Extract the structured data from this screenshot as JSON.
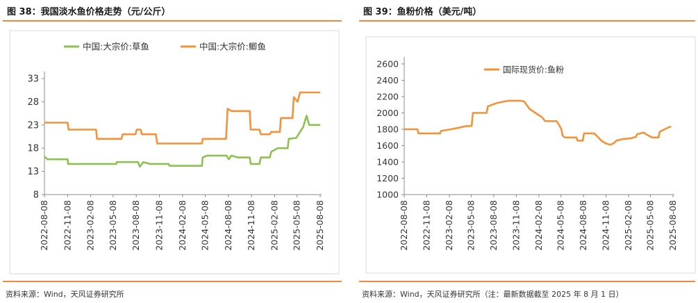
{
  "left": {
    "title": "图 38：我国淡水鱼价格走势（元/公斤）",
    "source": "资料来源：Wind，天风证券研究所"
  },
  "right": {
    "title": "图 39：鱼粉价格（美元/吨）",
    "source": "资料来源：Wind，天风证券研究所（注：最新数据截至 2025 年 8 月 1 日）"
  },
  "colors": {
    "green": "#8cc152",
    "orange": "#f4923a",
    "accent": "#ef8a3c"
  },
  "chart_data": [
    {
      "type": "line",
      "title": "",
      "ylim": [
        8,
        33
      ],
      "yticks": [
        8,
        13,
        18,
        23,
        28,
        33
      ],
      "xticks": [
        "2022-08-08",
        "2022-11-08",
        "2023-02-08",
        "2023-05-08",
        "2023-08-08",
        "2023-11-08",
        "2024-02-08",
        "2024-05-08",
        "2024-08-08",
        "2024-11-08",
        "2025-02-08",
        "2025-05-08",
        "2025-08-08"
      ],
      "legend_position": "top",
      "series": [
        {
          "name": "中国:大宗价:草鱼",
          "color": "#8cc152",
          "points": [
            [
              "2022-08-08",
              16.2
            ],
            [
              "2022-08-20",
              15.6
            ],
            [
              "2022-11-08",
              15.6
            ],
            [
              "2022-11-10",
              14.6
            ],
            [
              "2023-05-20",
              14.6
            ],
            [
              "2023-05-22",
              15.0
            ],
            [
              "2023-08-15",
              15.0
            ],
            [
              "2023-08-22",
              14.0
            ],
            [
              "2023-09-05",
              15.0
            ],
            [
              "2023-10-01",
              14.6
            ],
            [
              "2023-12-15",
              14.6
            ],
            [
              "2023-12-18",
              14.2
            ],
            [
              "2024-04-25",
              14.2
            ],
            [
              "2024-04-28",
              16.0
            ],
            [
              "2024-05-15",
              16.4
            ],
            [
              "2024-08-01",
              16.4
            ],
            [
              "2024-08-10",
              15.6
            ],
            [
              "2024-08-20",
              16.4
            ],
            [
              "2024-09-15",
              16.0
            ],
            [
              "2024-11-01",
              16.0
            ],
            [
              "2024-11-05",
              14.6
            ],
            [
              "2024-12-10",
              14.6
            ],
            [
              "2024-12-15",
              16.0
            ],
            [
              "2025-01-20",
              16.0
            ],
            [
              "2025-01-25",
              17.2
            ],
            [
              "2025-02-20",
              18.0
            ],
            [
              "2025-04-01",
              18.0
            ],
            [
              "2025-04-05",
              20.0
            ],
            [
              "2025-05-05",
              20.2
            ],
            [
              "2025-05-20",
              21.5
            ],
            [
              "2025-06-01",
              22.5
            ],
            [
              "2025-06-15",
              25.0
            ],
            [
              "2025-06-25",
              23.0
            ],
            [
              "2025-08-08",
              23.0
            ]
          ]
        },
        {
          "name": "中国:大宗价:鲫鱼",
          "color": "#f4923a",
          "points": [
            [
              "2022-08-08",
              23.5
            ],
            [
              "2022-11-08",
              23.5
            ],
            [
              "2022-11-12",
              22.0
            ],
            [
              "2023-03-01",
              22.0
            ],
            [
              "2023-03-05",
              20.0
            ],
            [
              "2023-06-10",
              20.0
            ],
            [
              "2023-06-15",
              21.0
            ],
            [
              "2023-08-05",
              21.0
            ],
            [
              "2023-08-10",
              22.0
            ],
            [
              "2023-08-25",
              22.0
            ],
            [
              "2023-08-30",
              21.0
            ],
            [
              "2023-10-25",
              21.0
            ],
            [
              "2023-10-30",
              19.0
            ],
            [
              "2024-04-25",
              19.0
            ],
            [
              "2024-04-28",
              20.0
            ],
            [
              "2024-07-30",
              20.0
            ],
            [
              "2024-08-05",
              26.5
            ],
            [
              "2024-08-20",
              26.0
            ],
            [
              "2024-11-01",
              26.0
            ],
            [
              "2024-11-05",
              22.0
            ],
            [
              "2024-12-10",
              22.0
            ],
            [
              "2024-12-15",
              21.0
            ],
            [
              "2025-01-20",
              21.0
            ],
            [
              "2025-01-25",
              21.5
            ],
            [
              "2025-03-01",
              21.5
            ],
            [
              "2025-03-05",
              24.5
            ],
            [
              "2025-04-20",
              24.5
            ],
            [
              "2025-04-25",
              29.0
            ],
            [
              "2025-05-10",
              28.0
            ],
            [
              "2025-05-20",
              30.0
            ],
            [
              "2025-08-08",
              30.0
            ]
          ]
        }
      ]
    },
    {
      "type": "line",
      "title": "",
      "ylim": [
        1000,
        2600
      ],
      "yticks": [
        1000,
        1200,
        1400,
        1600,
        1800,
        2000,
        2200,
        2400,
        2600
      ],
      "xticks": [
        "2022-08-08",
        "2022-11-08",
        "2023-02-08",
        "2023-05-08",
        "2023-08-08",
        "2023-11-08",
        "2024-02-08",
        "2024-05-08",
        "2024-08-08",
        "2024-11-08",
        "2025-02-08",
        "2025-05-08",
        "2025-08-08"
      ],
      "legend_position": "top",
      "series": [
        {
          "name": "国际现货价:鱼粉",
          "color": "#f4923a",
          "points": [
            [
              "2022-08-08",
              1800
            ],
            [
              "2022-10-01",
              1800
            ],
            [
              "2022-10-05",
              1750
            ],
            [
              "2023-01-01",
              1750
            ],
            [
              "2023-01-05",
              1780
            ],
            [
              "2023-02-15",
              1800
            ],
            [
              "2023-03-20",
              1820
            ],
            [
              "2023-04-20",
              1840
            ],
            [
              "2023-05-10",
              1840
            ],
            [
              "2023-05-15",
              2000
            ],
            [
              "2023-07-10",
              2000
            ],
            [
              "2023-07-15",
              2080
            ],
            [
              "2023-08-01",
              2100
            ],
            [
              "2023-08-20",
              2120
            ],
            [
              "2023-09-20",
              2140
            ],
            [
              "2023-10-10",
              2150
            ],
            [
              "2023-11-25",
              2150
            ],
            [
              "2023-12-10",
              2140
            ],
            [
              "2024-01-01",
              2050
            ],
            [
              "2024-01-25",
              2000
            ],
            [
              "2024-02-20",
              1950
            ],
            [
              "2024-03-05",
              1900
            ],
            [
              "2024-04-20",
              1900
            ],
            [
              "2024-05-01",
              1850
            ],
            [
              "2024-05-10",
              1800
            ],
            [
              "2024-05-15",
              1720
            ],
            [
              "2024-05-25",
              1700
            ],
            [
              "2024-07-10",
              1700
            ],
            [
              "2024-07-15",
              1660
            ],
            [
              "2024-08-05",
              1660
            ],
            [
              "2024-08-10",
              1750
            ],
            [
              "2024-09-20",
              1750
            ],
            [
              "2024-10-01",
              1720
            ],
            [
              "2024-10-20",
              1660
            ],
            [
              "2024-11-05",
              1630
            ],
            [
              "2024-11-25",
              1610
            ],
            [
              "2024-12-10",
              1630
            ],
            [
              "2024-12-20",
              1660
            ],
            [
              "2025-01-15",
              1680
            ],
            [
              "2025-02-20",
              1690
            ],
            [
              "2025-03-10",
              1710
            ],
            [
              "2025-03-15",
              1740
            ],
            [
              "2025-04-10",
              1760
            ],
            [
              "2025-04-25",
              1730
            ],
            [
              "2025-05-15",
              1700
            ],
            [
              "2025-06-10",
              1700
            ],
            [
              "2025-06-15",
              1770
            ],
            [
              "2025-07-05",
              1800
            ],
            [
              "2025-07-25",
              1830
            ],
            [
              "2025-08-01",
              1830
            ]
          ]
        }
      ]
    }
  ]
}
